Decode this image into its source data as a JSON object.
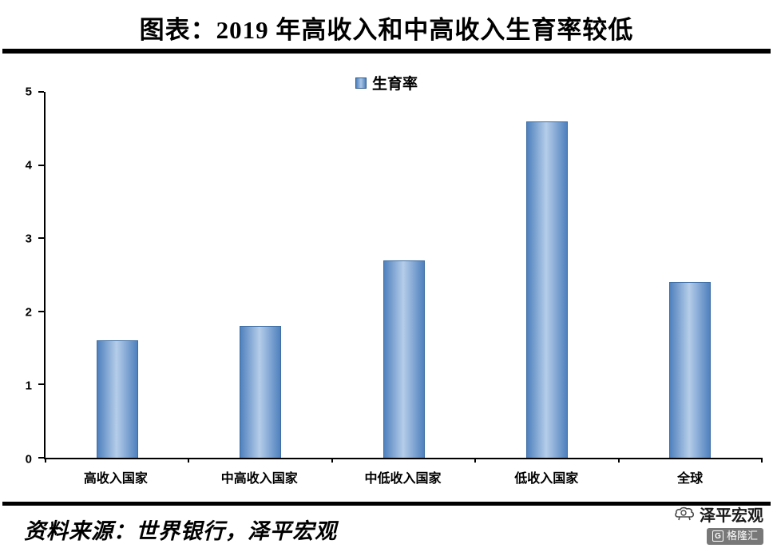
{
  "title": "图表：2019 年高收入和中高收入生育率较低",
  "legend": {
    "label": "生育率"
  },
  "chart_data": {
    "type": "bar",
    "title": "图表：2019 年高收入和中高收入生育率较低",
    "categories": [
      "高收入国家",
      "中高收入国家",
      "中低收入国家",
      "低收入国家",
      "全球"
    ],
    "values": [
      1.6,
      1.8,
      2.7,
      4.6,
      2.4
    ],
    "series_name": "生育率",
    "xlabel": "",
    "ylabel": "",
    "ylim": [
      0,
      5
    ],
    "yticks": [
      0,
      1,
      2,
      3,
      4,
      5
    ],
    "grid": false,
    "legend_position": "top-center",
    "bar_color": "#4f81bd",
    "bar_highlight": "#b5cde9"
  },
  "footer": {
    "source": "资料来源：世界银行，泽平宏观"
  },
  "watermark": {
    "brand": "泽平宏观",
    "badge": "格隆汇"
  }
}
